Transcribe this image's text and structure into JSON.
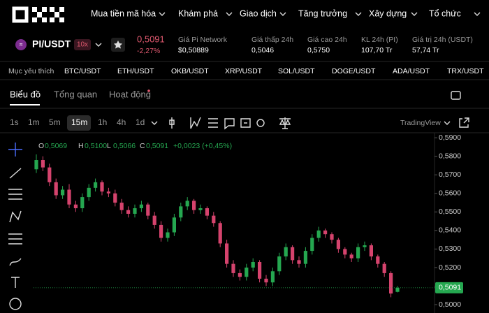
{
  "nav": {
    "items": [
      "Mua tiền mã hóa",
      "Khám phá",
      "Giao dịch",
      "Tăng trưởng",
      "Xây dựng",
      "Tổ chức"
    ]
  },
  "ticker": {
    "pair": "PI/USDT",
    "leverage": "10x",
    "price": "0,5091",
    "change": "-2,27%",
    "stats": [
      {
        "label": "Giá Pi Network",
        "value": "$0,50889"
      },
      {
        "label": "Giá thấp 24h",
        "value": "0,5046"
      },
      {
        "label": "Giá cao 24h",
        "value": "0,5750"
      },
      {
        "label": "KL 24h (PI)",
        "value": "107,70 Tr"
      },
      {
        "label": "Giá trị 24h (USDT)",
        "value": "57,74 Tr"
      }
    ]
  },
  "favorites": {
    "label": "Mục yêu thích",
    "pairs": [
      "BTC/USDT",
      "ETH/USDT",
      "OKB/USDT",
      "XRP/USDT",
      "SOL/USDT",
      "DOGE/USDT",
      "ADA/USDT",
      "TRX/USDT"
    ]
  },
  "tabs": [
    "Biểu đồ",
    "Tổng quan",
    "Hoạt động"
  ],
  "toolbar": {
    "intervals": [
      "1s",
      "1m",
      "5m",
      "15m",
      "1h",
      "4h",
      "1d"
    ],
    "active_interval": "15m",
    "provider": "TradingView"
  },
  "chart_legend": {
    "o_key": "O",
    "o": "0,5069",
    "h_key": "H",
    "h": "0,5100",
    "l_key": "L",
    "l": "0,5066",
    "c_key": "C",
    "c": "0,5091",
    "change": "+0,0023 (+0,45%)"
  },
  "chart_data": {
    "type": "candlestick",
    "open": [
      0.573,
      0.578,
      0.574,
      0.566,
      0.559,
      0.562,
      0.554,
      0.552,
      0.558,
      0.563,
      0.566,
      0.561,
      0.56,
      0.555,
      0.551,
      0.549,
      0.552,
      0.554,
      0.548,
      0.543,
      0.536,
      0.539,
      0.547,
      0.553,
      0.556,
      0.551,
      0.552,
      0.548,
      0.544,
      0.533,
      0.522,
      0.517,
      0.515,
      0.52,
      0.523,
      0.514,
      0.512,
      0.518,
      0.526,
      0.531,
      0.524,
      0.522,
      0.529,
      0.536,
      0.54,
      0.538,
      0.535,
      0.53,
      0.527,
      0.525,
      0.531,
      0.532,
      0.526,
      0.522,
      0.517,
      0.5069
    ],
    "high": [
      0.581,
      0.58,
      0.576,
      0.568,
      0.564,
      0.565,
      0.556,
      0.56,
      0.565,
      0.568,
      0.567,
      0.563,
      0.562,
      0.557,
      0.553,
      0.554,
      0.556,
      0.555,
      0.55,
      0.545,
      0.541,
      0.549,
      0.555,
      0.558,
      0.557,
      0.554,
      0.553,
      0.55,
      0.545,
      0.535,
      0.524,
      0.519,
      0.522,
      0.525,
      0.524,
      0.516,
      0.52,
      0.528,
      0.533,
      0.532,
      0.526,
      0.531,
      0.538,
      0.542,
      0.541,
      0.539,
      0.536,
      0.531,
      0.528,
      0.533,
      0.534,
      0.533,
      0.527,
      0.523,
      0.518,
      0.51
    ],
    "low": [
      0.571,
      0.572,
      0.564,
      0.557,
      0.557,
      0.552,
      0.55,
      0.55,
      0.556,
      0.561,
      0.559,
      0.558,
      0.553,
      0.549,
      0.547,
      0.547,
      0.55,
      0.546,
      0.541,
      0.534,
      0.534,
      0.537,
      0.545,
      0.551,
      0.549,
      0.549,
      0.546,
      0.542,
      0.531,
      0.52,
      0.515,
      0.513,
      0.513,
      0.518,
      0.512,
      0.51,
      0.51,
      0.516,
      0.524,
      0.522,
      0.52,
      0.52,
      0.527,
      0.534,
      0.536,
      0.533,
      0.528,
      0.525,
      0.523,
      0.523,
      0.529,
      0.524,
      0.52,
      0.515,
      0.504,
      0.5066
    ],
    "close": [
      0.578,
      0.574,
      0.566,
      0.559,
      0.562,
      0.554,
      0.552,
      0.558,
      0.563,
      0.566,
      0.561,
      0.56,
      0.555,
      0.551,
      0.549,
      0.552,
      0.554,
      0.548,
      0.543,
      0.536,
      0.539,
      0.547,
      0.553,
      0.556,
      0.551,
      0.552,
      0.548,
      0.544,
      0.533,
      0.522,
      0.517,
      0.515,
      0.52,
      0.523,
      0.514,
      0.512,
      0.518,
      0.526,
      0.531,
      0.524,
      0.522,
      0.529,
      0.536,
      0.54,
      0.538,
      0.535,
      0.53,
      0.527,
      0.525,
      0.531,
      0.532,
      0.526,
      0.522,
      0.517,
      0.506,
      0.5091
    ],
    "ylim": [
      0.4955,
      0.5927
    ],
    "yticks": [
      {
        "value": 0.5,
        "label": "0,5000"
      },
      {
        "value": 0.51,
        "label": "0,5100"
      },
      {
        "value": 0.52,
        "label": "0,5200"
      },
      {
        "value": 0.53,
        "label": "0,5300"
      },
      {
        "value": 0.54,
        "label": "0,5400"
      },
      {
        "value": 0.55,
        "label": "0,5500"
      },
      {
        "value": 0.56,
        "label": "0,5600"
      },
      {
        "value": 0.57,
        "label": "0,5700"
      },
      {
        "value": 0.58,
        "label": "0,5800"
      },
      {
        "value": 0.59,
        "label": "0,5900"
      }
    ],
    "up_color": "#25a750",
    "down_color": "#d5436d",
    "price_label": {
      "value": 0.5091,
      "label": "0,5091"
    }
  }
}
